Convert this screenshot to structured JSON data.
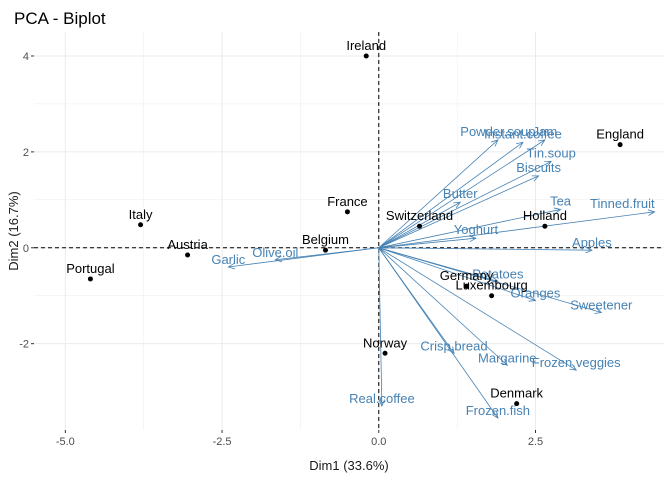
{
  "chart_data": {
    "type": "scatter",
    "title": "PCA - Biplot",
    "xlabel": "Dim1 (33.6%)",
    "ylabel": "Dim2 (16.7%)",
    "xlim": [
      -5.5,
      4.55
    ],
    "ylim": [
      -3.8,
      4.5
    ],
    "xticks": [
      -5.0,
      -2.5,
      0.0,
      2.5
    ],
    "xtick_labels": [
      "-5.0",
      "-2.5",
      "0.0",
      "2.5"
    ],
    "yticks": [
      -2,
      0,
      2,
      4
    ],
    "ytick_labels": [
      "-2",
      "0",
      "2",
      "4"
    ],
    "grid": true,
    "colors": {
      "points": "#000000",
      "variables": "#4682b4",
      "grid": "#ebebeb",
      "reference": "#000000"
    },
    "individuals": [
      {
        "name": "Ireland",
        "x": -0.2,
        "y": 4.0
      },
      {
        "name": "England",
        "x": 3.85,
        "y": 2.15
      },
      {
        "name": "Italy",
        "x": -3.8,
        "y": 0.48
      },
      {
        "name": "France",
        "x": -0.5,
        "y": 0.75
      },
      {
        "name": "Switzerland",
        "x": 0.65,
        "y": 0.45
      },
      {
        "name": "Holland",
        "x": 2.65,
        "y": 0.45
      },
      {
        "name": "Austria",
        "x": -3.05,
        "y": -0.15
      },
      {
        "name": "Belgium",
        "x": -0.85,
        "y": -0.05
      },
      {
        "name": "Portugal",
        "x": -4.6,
        "y": -0.65
      },
      {
        "name": "Germany",
        "x": 1.4,
        "y": -0.8
      },
      {
        "name": "Luxembourg",
        "x": 1.8,
        "y": -1.0
      },
      {
        "name": "Norway",
        "x": 0.1,
        "y": -2.2
      },
      {
        "name": "Denmark",
        "x": 2.2,
        "y": -3.25
      }
    ],
    "variables": [
      {
        "name": "Instant.coffee",
        "x": 2.3,
        "y": 2.2
      },
      {
        "name": "Powder.soup",
        "x": 1.9,
        "y": 2.25
      },
      {
        "name": "Jam",
        "x": 2.65,
        "y": 2.25
      },
      {
        "name": "Tin.soup",
        "x": 2.75,
        "y": 1.8
      },
      {
        "name": "Biscuits",
        "x": 2.55,
        "y": 1.5
      },
      {
        "name": "Tinned.fruit",
        "x": 4.4,
        "y": 0.75
      },
      {
        "name": "Tea",
        "x": 2.9,
        "y": 0.8
      },
      {
        "name": "Butter",
        "x": 1.3,
        "y": 0.95
      },
      {
        "name": "Yoghurt",
        "x": 1.55,
        "y": 0.2
      },
      {
        "name": "Apples",
        "x": 3.4,
        "y": -0.05
      },
      {
        "name": "Potatoes",
        "x": 1.9,
        "y": -0.7
      },
      {
        "name": "Oranges",
        "x": 2.5,
        "y": -1.1
      },
      {
        "name": "Sweetener",
        "x": 3.55,
        "y": -1.35
      },
      {
        "name": "Frozen.veggies",
        "x": 3.15,
        "y": -2.55
      },
      {
        "name": "Margarine",
        "x": 2.05,
        "y": -2.45
      },
      {
        "name": "Crisp.bread",
        "x": 1.2,
        "y": -2.2
      },
      {
        "name": "Frozen.fish",
        "x": 1.9,
        "y": -3.55
      },
      {
        "name": "Real.coffee",
        "x": 0.05,
        "y": -3.3
      },
      {
        "name": "Olive.oil",
        "x": -1.65,
        "y": -0.25
      },
      {
        "name": "Garlic",
        "x": -2.4,
        "y": -0.4
      }
    ]
  }
}
